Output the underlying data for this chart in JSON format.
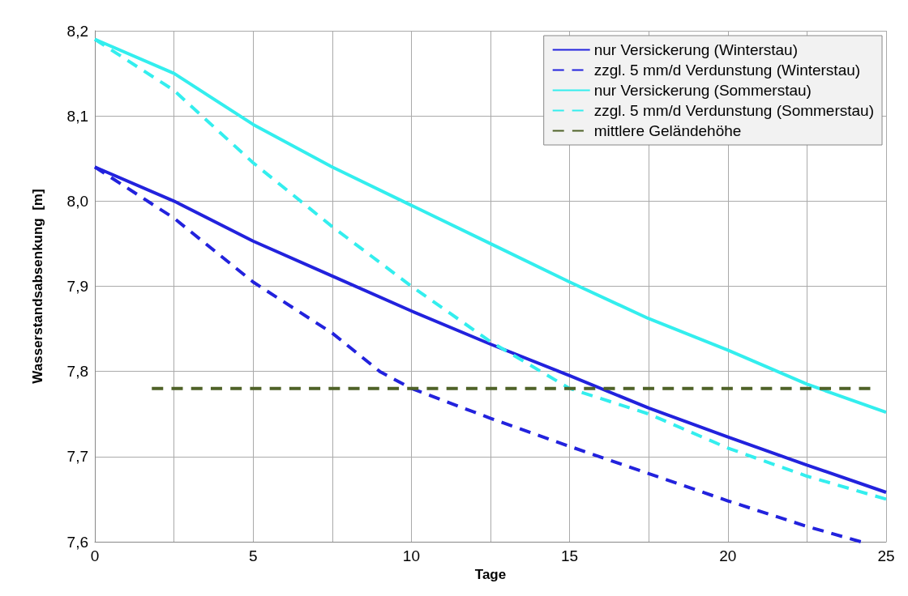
{
  "chart_data": {
    "type": "line",
    "xlabel": "Tage",
    "ylabel": "Wasserstandsabsenkung  [m]",
    "xlim": [
      0,
      25
    ],
    "xticks": [
      0,
      {
        "value": 2.5,
        "label": null
      },
      5,
      {
        "value": 7.5,
        "label": null
      },
      10,
      {
        "value": 12.5,
        "label": null
      },
      15,
      {
        "value": 17.5,
        "label": null
      },
      20,
      {
        "value": 22.5,
        "label": null
      },
      25
    ],
    "ylim": [
      7.6,
      8.2
    ],
    "yticks": [
      {
        "value": 7.6,
        "label": "7,6"
      },
      {
        "value": 7.7,
        "label": "7,7"
      },
      {
        "value": 7.8,
        "label": "7,8"
      },
      {
        "value": 7.9,
        "label": "7,9"
      },
      {
        "value": 8.0,
        "label": "8,0"
      },
      {
        "value": 8.1,
        "label": "8,1"
      },
      {
        "value": 8.2,
        "label": "8,2"
      }
    ],
    "grid": true,
    "legend": "top right",
    "marker": "none",
    "series": [
      {
        "name": "nur Versickerung (Winterstau)",
        "color": "#2222dd",
        "line_style": "solid",
        "x": [
          0,
          2.5,
          5,
          7.5,
          10,
          12.5,
          15,
          17.5,
          20,
          22.5,
          25
        ],
        "values": [
          8.04,
          8.0,
          7.953,
          7.912,
          7.871,
          7.832,
          7.795,
          7.757,
          7.723,
          7.69,
          7.658
        ]
      },
      {
        "name": "zzgl. 5 mm/d Verdunstung (Winterstau)",
        "color": "#2222dd",
        "line_style": "dashed",
        "x": [
          0,
          2.5,
          5,
          7.5,
          9,
          10,
          12.5,
          15,
          17.5,
          20,
          22.5,
          24.2
        ],
        "values": [
          8.04,
          7.98,
          7.905,
          7.845,
          7.8,
          7.78,
          7.745,
          7.712,
          7.68,
          7.648,
          7.618,
          7.6
        ]
      },
      {
        "name": "nur Versickerung (Sommerstau)",
        "color": "#33eeee",
        "line_style": "solid",
        "x": [
          0,
          2.5,
          5,
          7.5,
          10,
          12.5,
          15,
          17.5,
          20,
          22.5,
          25
        ],
        "values": [
          8.19,
          8.15,
          8.09,
          8.04,
          7.995,
          7.95,
          7.905,
          7.862,
          7.825,
          7.785,
          7.752
        ]
      },
      {
        "name": "zzgl. 5 mm/d Verdunstung (Sommerstau)",
        "color": "#33eeee",
        "line_style": "dashed",
        "x": [
          0,
          2.5,
          5,
          7.5,
          10,
          12.5,
          15,
          17.5,
          20,
          22.5,
          25
        ],
        "values": [
          8.19,
          8.13,
          8.045,
          7.97,
          7.9,
          7.835,
          7.78,
          7.75,
          7.71,
          7.677,
          7.65
        ]
      },
      {
        "name": "mittlere Geländehöhe",
        "color": "#4f6228",
        "line_style": "dashed",
        "x": [
          1.8,
          24.5
        ],
        "values": [
          7.78,
          7.78
        ]
      }
    ]
  }
}
